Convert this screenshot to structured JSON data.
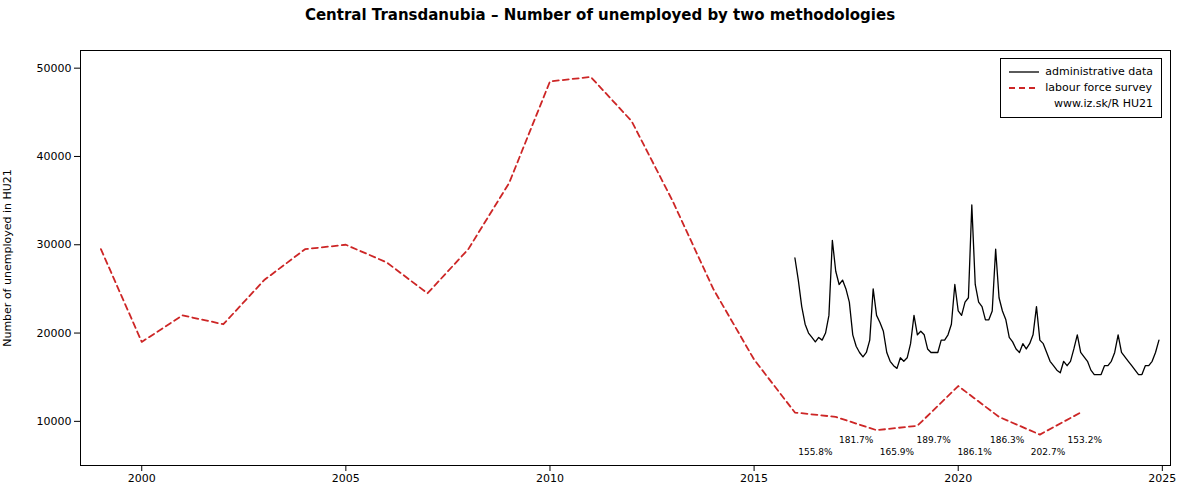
{
  "chart_data": {
    "type": "line",
    "title": "Central Transdanubia – Number of unemployed  by two methodologies",
    "ylabel": "Number of unemployed in HU21",
    "xlim": [
      1998.5,
      2025.2
    ],
    "ylim": [
      5000,
      52000
    ],
    "xticks": [
      2000,
      2005,
      2010,
      2015,
      2020,
      2025
    ],
    "yticks": [
      10000,
      20000,
      30000,
      40000,
      50000
    ],
    "grid": false,
    "legend": "upper right",
    "legend_note": "www.iz.sk/R HU21",
    "series": [
      {
        "name": "administrative data",
        "color": "#000000",
        "line_style": "solid",
        "x": [
          2016.0,
          2016.083,
          2016.167,
          2016.25,
          2016.333,
          2016.417,
          2016.5,
          2016.583,
          2016.667,
          2016.75,
          2016.833,
          2016.917,
          2017.0,
          2017.083,
          2017.167,
          2017.25,
          2017.333,
          2017.417,
          2017.5,
          2017.583,
          2017.667,
          2017.75,
          2017.833,
          2017.917,
          2018.0,
          2018.083,
          2018.167,
          2018.25,
          2018.333,
          2018.417,
          2018.5,
          2018.583,
          2018.667,
          2018.75,
          2018.833,
          2018.917,
          2019.0,
          2019.083,
          2019.167,
          2019.25,
          2019.333,
          2019.417,
          2019.5,
          2019.583,
          2019.667,
          2019.75,
          2019.833,
          2019.917,
          2020.0,
          2020.083,
          2020.167,
          2020.25,
          2020.333,
          2020.417,
          2020.5,
          2020.583,
          2020.667,
          2020.75,
          2020.833,
          2020.917,
          2021.0,
          2021.083,
          2021.167,
          2021.25,
          2021.333,
          2021.417,
          2021.5,
          2021.583,
          2021.667,
          2021.75,
          2021.833,
          2021.917,
          2022.0,
          2022.083,
          2022.167,
          2022.25,
          2022.333,
          2022.417,
          2022.5,
          2022.583,
          2022.667,
          2022.75,
          2022.833,
          2022.917,
          2023.0,
          2023.083,
          2023.167,
          2023.25,
          2023.333,
          2023.417,
          2023.5,
          2023.583,
          2023.667,
          2023.75,
          2023.833,
          2023.917,
          2024.0,
          2024.083,
          2024.167,
          2024.25,
          2024.333,
          2024.417,
          2024.5,
          2024.583,
          2024.667,
          2024.75,
          2024.833,
          2024.917
        ],
        "values": [
          28500,
          26000,
          23000,
          21000,
          20000,
          19500,
          19000,
          19500,
          19200,
          20000,
          22000,
          30500,
          27000,
          25500,
          26000,
          25000,
          23500,
          19800,
          18500,
          17800,
          17300,
          17800,
          19200,
          25000,
          22000,
          21200,
          20200,
          17800,
          16800,
          16300,
          16000,
          17200,
          16800,
          17200,
          18800,
          22000,
          19800,
          20200,
          19800,
          18200,
          17800,
          17800,
          17800,
          19200,
          19200,
          19800,
          21000,
          25500,
          22500,
          22000,
          23500,
          24000,
          34500,
          25500,
          23500,
          23000,
          21500,
          21500,
          22500,
          29500,
          24000,
          22500,
          21500,
          19500,
          19000,
          18200,
          17800,
          18800,
          18200,
          18800,
          19800,
          23000,
          19200,
          18800,
          17800,
          16800,
          16300,
          15800,
          15500,
          16800,
          16300,
          16800,
          18200,
          19800,
          17800,
          17300,
          16800,
          15800,
          15300,
          15300,
          15300,
          16300,
          16300,
          16800,
          17800,
          19800,
          17800,
          17300,
          16800,
          16300,
          15800,
          15300,
          15300,
          16300,
          16300,
          16800,
          17800,
          19200
        ]
      },
      {
        "name": "labour force survey",
        "color": "#cd2626",
        "line_style": "dashed",
        "x": [
          1999.0,
          2000.0,
          2001.0,
          2002.0,
          2003.0,
          2004.0,
          2005.0,
          2006.0,
          2007.0,
          2008.0,
          2009.0,
          2010.0,
          2011.0,
          2012.0,
          2013.0,
          2014.0,
          2015.0,
          2016.0,
          2017.0,
          2018.0,
          2019.0,
          2020.0,
          2021.0,
          2022.0,
          2023.0
        ],
        "values": [
          29500,
          19000,
          22000,
          21000,
          26000,
          29500,
          30000,
          28000,
          24500,
          29500,
          37000,
          48500,
          49000,
          44000,
          35000,
          25000,
          17000,
          11000,
          10500,
          9000,
          9500,
          14000,
          10500,
          8500,
          11000
        ]
      }
    ],
    "annotations": [
      {
        "text": "155.8%",
        "x": 2016.5,
        "y": 6200
      },
      {
        "text": "181.7%",
        "x": 2017.5,
        "y": 7600
      },
      {
        "text": "165.9%",
        "x": 2018.5,
        "y": 6200
      },
      {
        "text": "189.7%",
        "x": 2019.4,
        "y": 7600
      },
      {
        "text": "186.1%",
        "x": 2020.4,
        "y": 6200
      },
      {
        "text": "186.3%",
        "x": 2021.2,
        "y": 7600
      },
      {
        "text": "202.7%",
        "x": 2022.2,
        "y": 6200
      },
      {
        "text": "153.2%",
        "x": 2023.1,
        "y": 7600
      }
    ]
  }
}
